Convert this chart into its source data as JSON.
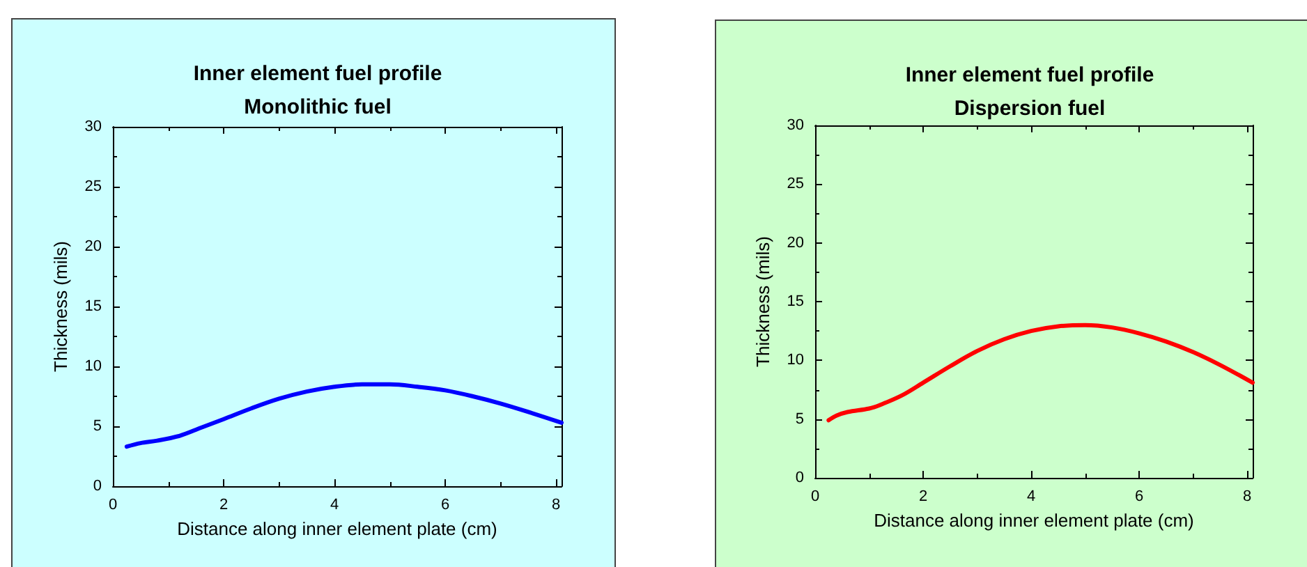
{
  "chart_data": [
    {
      "type": "line",
      "title": "Inner element fuel profile\nMonolithic fuel",
      "xlabel": "Distance along inner element plate (cm)",
      "ylabel": "Thickness (mils)",
      "series": [
        {
          "color": "#0000ff",
          "x": [
            0.25,
            0.5,
            0.8,
            1.2,
            1.6,
            2,
            2.5,
            3,
            3.5,
            4,
            4.5,
            5,
            5.5,
            6,
            6.5,
            7,
            7.5,
            8.1
          ],
          "values": [
            3.3,
            3.6,
            3.8,
            4.2,
            4.9,
            5.6,
            6.5,
            7.3,
            7.9,
            8.3,
            8.5,
            8.5,
            8.3,
            8.0,
            7.5,
            6.9,
            6.2,
            5.3
          ]
        }
      ],
      "xlim": [
        0,
        8.1
      ],
      "xticks": [
        0,
        2,
        4,
        6,
        8
      ],
      "ylim": [
        0,
        30
      ],
      "yticks": [
        0,
        5,
        10,
        15,
        20,
        25,
        30
      ],
      "grid": false,
      "marker": "none",
      "line_style": "solid"
    },
    {
      "type": "line",
      "title": "Inner element fuel profile\nDispersion fuel",
      "xlabel": "Distance along inner element plate (cm)",
      "ylabel": "Thickness (mils)",
      "series": [
        {
          "color": "#ff0000",
          "x": [
            0.25,
            0.4,
            0.6,
            1,
            1.2,
            1.6,
            2,
            2.5,
            3,
            3.5,
            4,
            4.5,
            5,
            5.5,
            6,
            6.5,
            7,
            7.5,
            8.1
          ],
          "values": [
            4.9,
            5.3,
            5.6,
            5.9,
            6.2,
            7.0,
            8.1,
            9.5,
            10.8,
            11.8,
            12.5,
            12.9,
            13.0,
            12.8,
            12.3,
            11.6,
            10.7,
            9.6,
            8.1
          ]
        }
      ],
      "xlim": [
        0,
        8.1
      ],
      "xticks": [
        0,
        2,
        4,
        6,
        8
      ],
      "ylim": [
        0,
        30
      ],
      "yticks": [
        0,
        5,
        10,
        15,
        20,
        25,
        30
      ],
      "grid": false,
      "marker": "none",
      "line_style": "solid"
    }
  ]
}
